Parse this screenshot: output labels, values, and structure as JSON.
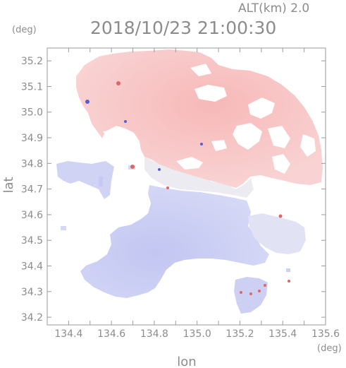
{
  "header": {
    "altitude_label": "ALT(km)  2.0",
    "timestamp": "2018/10/23 21:00:30"
  },
  "axes": {
    "y_unit": "(deg)",
    "x_unit": "(deg)",
    "ylabel": "lat",
    "xlabel": "lon",
    "x_ticks": [
      134.3,
      134.4,
      134.5,
      134.6,
      134.7,
      134.8,
      134.9,
      135.0,
      135.1,
      135.2,
      135.3,
      135.4,
      135.5,
      135.6
    ],
    "x_tick_labels": [
      "134.4",
      "134.6",
      "134.8",
      "135.0",
      "135.2",
      "135.4",
      "135.6"
    ],
    "x_tick_label_values": [
      134.4,
      134.6,
      134.8,
      135.0,
      135.2,
      135.4,
      135.6
    ],
    "y_tick_labels": [
      "34.2",
      "34.3",
      "34.4",
      "34.5",
      "34.6",
      "34.7",
      "34.8",
      "34.9",
      "35.0",
      "35.1",
      "35.2"
    ],
    "y_tick_values": [
      34.2,
      34.3,
      34.4,
      34.5,
      34.6,
      34.7,
      34.8,
      34.9,
      35.0,
      35.1,
      35.2
    ],
    "xlim": [
      134.3,
      135.6
    ],
    "ylim": [
      34.17,
      35.25
    ]
  },
  "colors": {
    "positive": "#f6c4c4",
    "positive_strong": "#e06666",
    "negative": "#c9cdf4",
    "negative_strong": "#5560d8",
    "neutral": "#eeeef4",
    "frame": "#9a9a9a"
  }
}
